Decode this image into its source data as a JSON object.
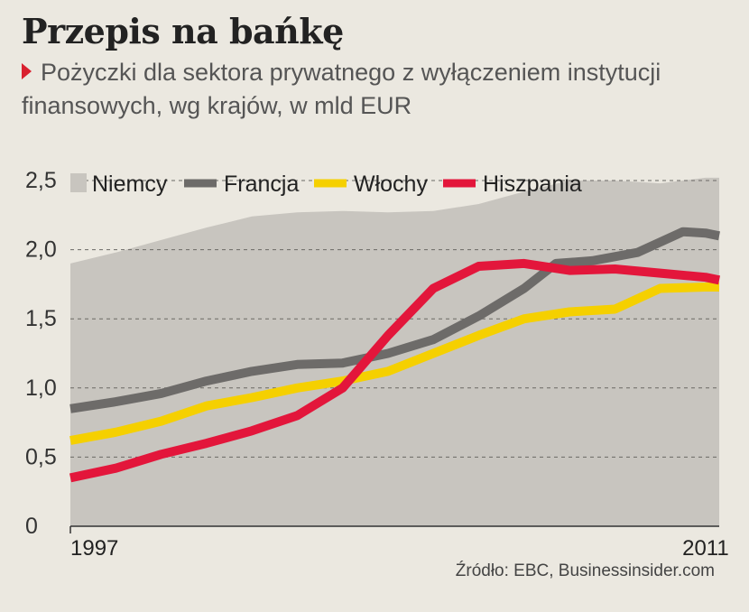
{
  "header": {
    "title": "Przepis na bańkę",
    "subtitle": "Pożyczki dla sektora prywatnego z wyłączeniem instytucji finansowych, wg krajów, w mld EUR"
  },
  "source": "Źródło: EBC, Businessinsider.com",
  "chart_data": {
    "type": "line",
    "title": "Przepis na bańkę",
    "subtitle": "Pożyczki dla sektora prywatnego z wyłączeniem instytucji finansowych, wg krajów, w mld EUR",
    "xlabel": "",
    "ylabel": "",
    "xlim": [
      1997,
      2011.3
    ],
    "ylim": [
      0,
      2.5
    ],
    "grid": true,
    "legend": "top",
    "x_tick_labels": [
      "1997",
      "2011"
    ],
    "x_ticks": [
      1997,
      2011
    ],
    "y_ticks": [
      0,
      0.5,
      1.0,
      1.5,
      2.0,
      2.5
    ],
    "y_tick_labels": [
      "0",
      "0,5",
      "1,0",
      "1,5",
      "2,0",
      "2,5"
    ],
    "series": [
      {
        "name": "Niemcy",
        "style": "area",
        "color": "#c8c5bf",
        "x": [
          1997,
          1998,
          1999,
          2000,
          2001,
          2002,
          2003,
          2004,
          2005,
          2006,
          2007,
          2008,
          2009,
          2010,
          2011,
          2011.3
        ],
        "values": [
          1.9,
          1.98,
          2.07,
          2.16,
          2.24,
          2.27,
          2.28,
          2.27,
          2.28,
          2.33,
          2.42,
          2.5,
          2.5,
          2.48,
          2.52,
          2.52
        ]
      },
      {
        "name": "Francja",
        "style": "line",
        "color": "#6d6b69",
        "x": [
          1997,
          1998,
          1999,
          2000,
          2001,
          2002,
          2003,
          2004,
          2005,
          2006,
          2007,
          2007.7,
          2008.5,
          2009.5,
          2010.5,
          2011,
          2011.3
        ],
        "values": [
          0.85,
          0.9,
          0.96,
          1.05,
          1.12,
          1.17,
          1.18,
          1.25,
          1.35,
          1.52,
          1.72,
          1.9,
          1.92,
          1.98,
          2.13,
          2.12,
          2.1
        ]
      },
      {
        "name": "Włochy",
        "style": "line",
        "color": "#f5d000",
        "x": [
          1997,
          1998,
          1999,
          2000,
          2001,
          2002,
          2003,
          2004,
          2005,
          2006,
          2007,
          2008,
          2009,
          2010,
          2011,
          2011.3
        ],
        "values": [
          0.62,
          0.68,
          0.76,
          0.87,
          0.93,
          1.0,
          1.05,
          1.12,
          1.25,
          1.38,
          1.5,
          1.55,
          1.57,
          1.72,
          1.73,
          1.73
        ]
      },
      {
        "name": "Hiszpania",
        "style": "line",
        "color": "#e3163b",
        "x": [
          1997,
          1998,
          1999,
          2000,
          2001,
          2002,
          2003,
          2004,
          2005,
          2006,
          2007,
          2008,
          2009,
          2010,
          2011,
          2011.3
        ],
        "values": [
          0.35,
          0.42,
          0.52,
          0.6,
          0.69,
          0.8,
          1.0,
          1.38,
          1.72,
          1.88,
          1.9,
          1.85,
          1.86,
          1.83,
          1.8,
          1.78
        ]
      }
    ]
  }
}
